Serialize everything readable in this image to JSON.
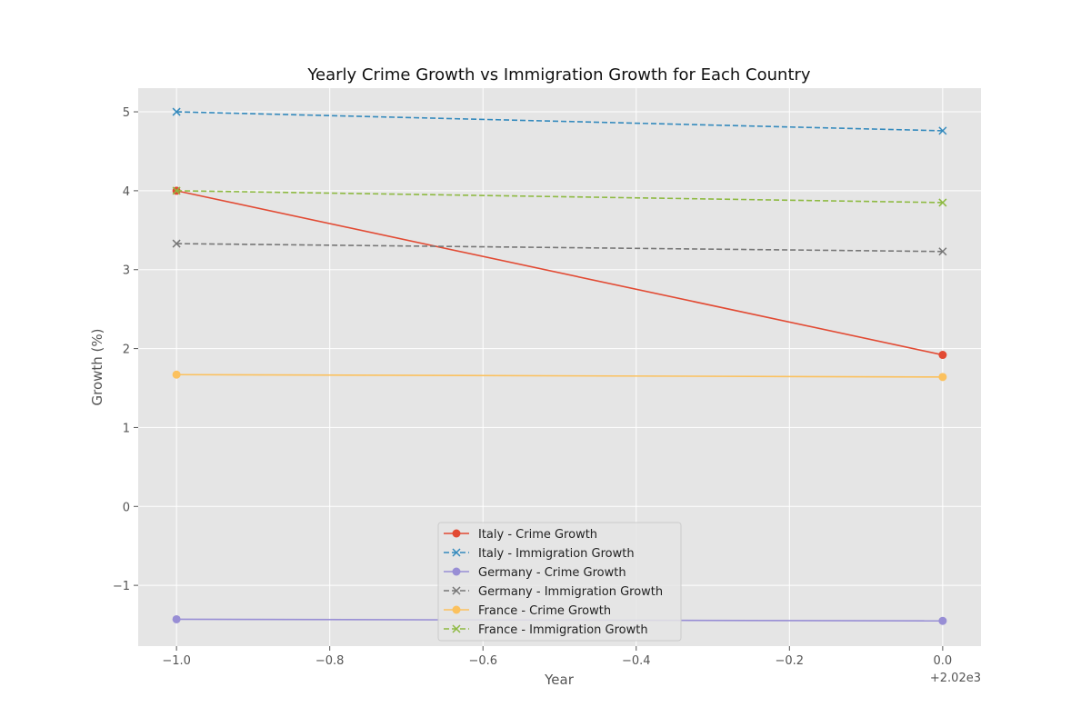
{
  "chart_data": {
    "type": "line",
    "title": "Yearly Crime Growth vs Immigration Growth for Each Country",
    "xlabel": "Year",
    "ylabel": "Growth (%)",
    "x_offset_label": "+2.02e3",
    "x_tick_labels": [
      "−1.0",
      "−0.8",
      "−0.6",
      "−0.4",
      "−0.2",
      "0.0"
    ],
    "y_tick_labels": [
      "−1",
      "0",
      "1",
      "2",
      "3",
      "4",
      "5"
    ],
    "xlim": [
      -1.05,
      0.05
    ],
    "ylim": [
      -1.77,
      5.3
    ],
    "grid": true,
    "legend_position": "lower center",
    "x": [
      -1.0,
      0.0
    ],
    "series": [
      {
        "name": "Italy - Crime Growth",
        "values": [
          4.0,
          1.92
        ],
        "color": "#E24A33",
        "style": "solid",
        "marker": "circle"
      },
      {
        "name": "Italy - Immigration Growth",
        "values": [
          5.0,
          4.76
        ],
        "color": "#348ABD",
        "style": "dashed",
        "marker": "x"
      },
      {
        "name": "Germany - Crime Growth",
        "values": [
          -1.43,
          -1.45
        ],
        "color": "#988ED5",
        "style": "solid",
        "marker": "circle"
      },
      {
        "name": "Germany - Immigration Growth",
        "values": [
          3.33,
          3.23
        ],
        "color": "#777777",
        "style": "dashed",
        "marker": "x"
      },
      {
        "name": "France - Crime Growth",
        "values": [
          1.67,
          1.64
        ],
        "color": "#FBC15E",
        "style": "solid",
        "marker": "circle"
      },
      {
        "name": "France - Immigration Growth",
        "values": [
          4.0,
          3.85
        ],
        "color": "#8EBA42",
        "style": "dashed",
        "marker": "x"
      }
    ]
  }
}
